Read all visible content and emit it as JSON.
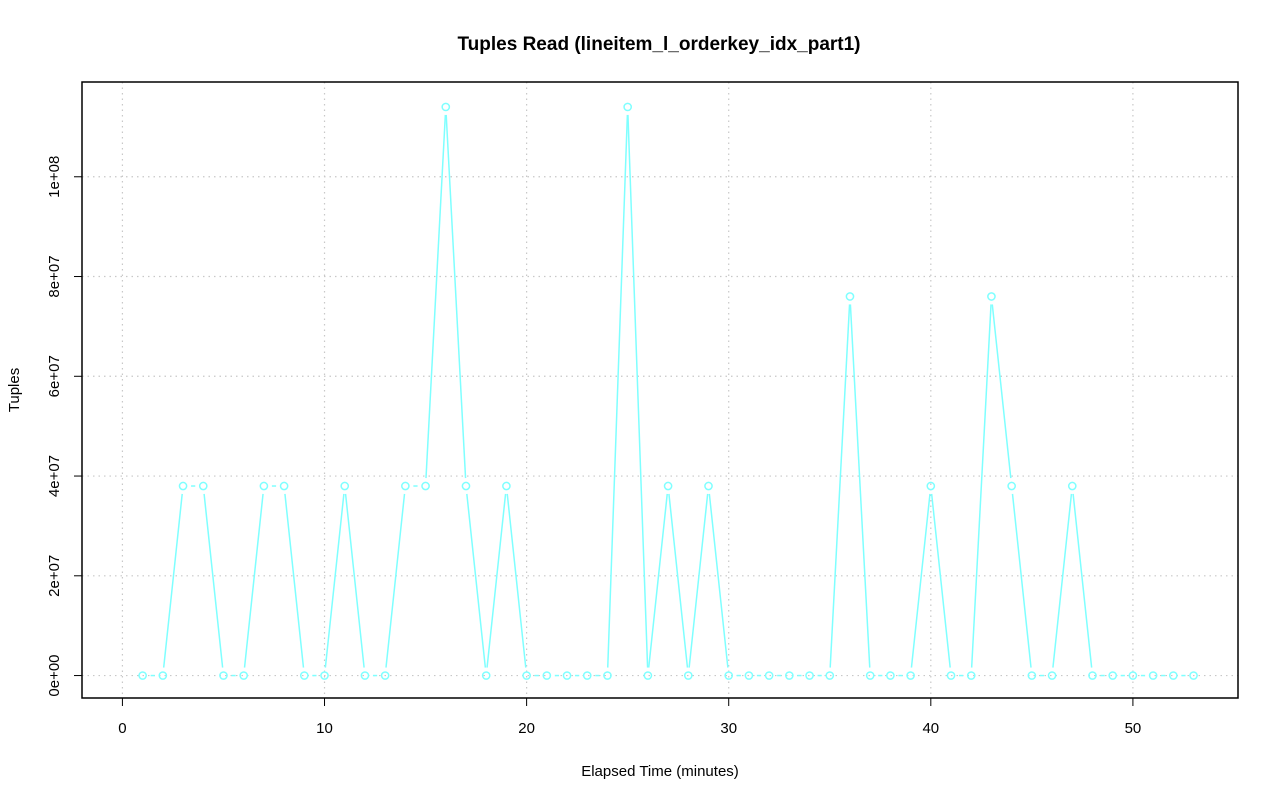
{
  "chart_data": {
    "type": "line",
    "title": "Tuples Read (lineitem_l_orderkey_idx_part1)",
    "xlabel": "Elapsed Time (minutes)",
    "ylabel": "Tuples",
    "xlim": [
      -2,
      55.2
    ],
    "ylim": [
      -4500000,
      119000000
    ],
    "x_ticks": [
      0,
      10,
      20,
      30,
      40,
      50
    ],
    "x_tick_labels": [
      "0",
      "10",
      "20",
      "30",
      "40",
      "50"
    ],
    "y_ticks": [
      0,
      20000000,
      40000000,
      60000000,
      80000000,
      100000000
    ],
    "y_tick_labels": [
      "0e+00",
      "2e+07",
      "4e+07",
      "6e+07",
      "8e+07",
      "1e+08"
    ],
    "grid": true,
    "legend": "none",
    "series": [
      {
        "color": "#7fffff",
        "markers": "open-circle",
        "x": [
          1,
          2,
          3,
          4,
          5,
          6,
          7,
          8,
          9,
          10,
          11,
          12,
          13,
          14,
          15,
          16,
          17,
          18,
          19,
          20,
          21,
          22,
          23,
          24,
          25,
          26,
          27,
          28,
          29,
          30,
          31,
          32,
          33,
          34,
          35,
          36,
          37,
          38,
          39,
          40,
          41,
          42,
          43,
          44,
          45,
          46,
          47,
          48,
          49,
          50,
          51,
          52,
          53
        ],
        "values": [
          0,
          0,
          38000000,
          38000000,
          0,
          0,
          38000000,
          38000000,
          0,
          0,
          38000000,
          0,
          0,
          38000000,
          38000000,
          114000000,
          38000000,
          0,
          38000000,
          0,
          0,
          0,
          0,
          0,
          114000000,
          0,
          38000000,
          0,
          38000000,
          0,
          0,
          0,
          0,
          0,
          0,
          76000000,
          0,
          0,
          0,
          38000000,
          0,
          0,
          76000000,
          38000000,
          0,
          0,
          38000000,
          0,
          0,
          0,
          0,
          0,
          0
        ]
      }
    ]
  }
}
